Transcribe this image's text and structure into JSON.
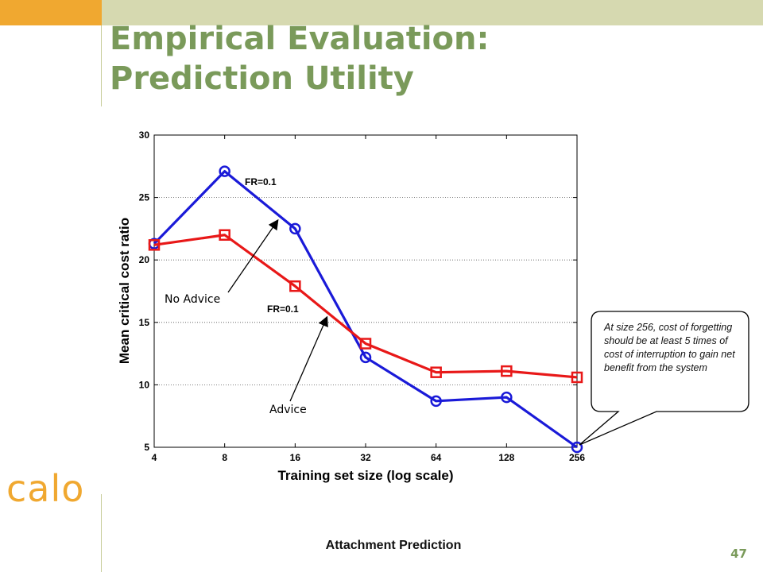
{
  "slide": {
    "title_line1": "Empirical Evaluation:",
    "title_line2": "Prediction Utility",
    "logo_text": "calo",
    "footer_label": "Attachment Prediction",
    "page_number": "47",
    "callout_text": "At size 256, cost of forgetting should be at least 5 times of cost of interruption to gain net benefit from the system",
    "colors": {
      "title": "#7a9a5a",
      "accent_orange": "#f0a830",
      "band": "#d6d9b0"
    }
  },
  "chart_data": {
    "type": "line",
    "title": "",
    "xlabel": "Training set size (log scale)",
    "ylabel": "Mean critical cost ratio",
    "x_scale": "log2",
    "x": [
      4,
      8,
      16,
      32,
      64,
      128,
      256
    ],
    "xticks": [
      "4",
      "8",
      "16",
      "32",
      "64",
      "128",
      "256"
    ],
    "ylim": [
      5,
      30
    ],
    "yticks": [
      "5",
      "10",
      "15",
      "20",
      "25",
      "30"
    ],
    "grid": "horizontal dotted",
    "series": [
      {
        "name": "No Advice",
        "color": "#1a1ad8",
        "marker": "circle",
        "values": [
          21.3,
          27.1,
          22.5,
          12.2,
          8.7,
          9.0,
          5.0
        ]
      },
      {
        "name": "Advice",
        "color": "#e81818",
        "marker": "square",
        "values": [
          21.2,
          22.0,
          17.9,
          13.3,
          11.0,
          11.1,
          10.6
        ]
      }
    ],
    "annotations": [
      {
        "text": "FR=0.1",
        "series": "No Advice"
      },
      {
        "text": "FR=0.1",
        "series": "Advice"
      },
      {
        "text": "No Advice",
        "series": "No Advice"
      },
      {
        "text": "Advice",
        "series": "Advice"
      }
    ]
  }
}
